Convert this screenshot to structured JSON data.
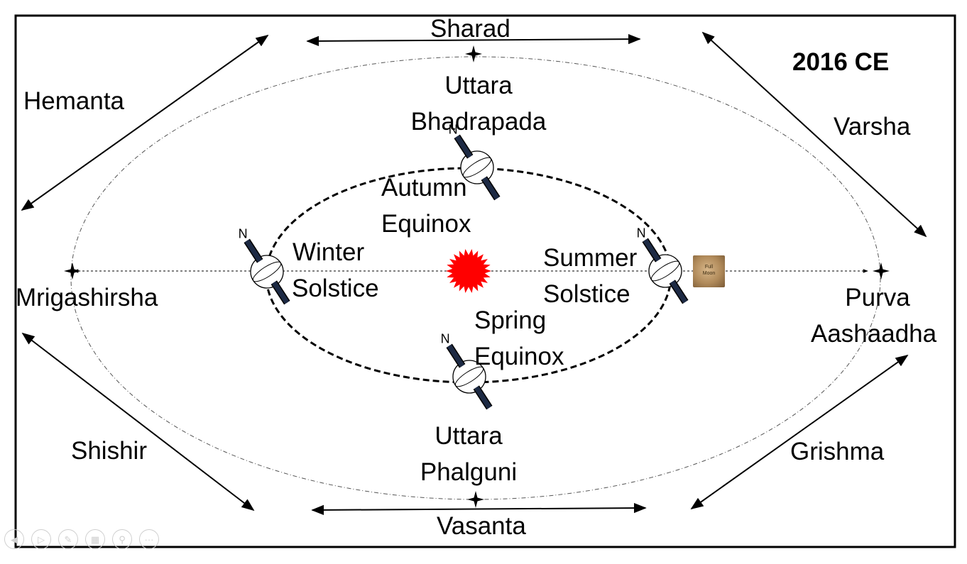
{
  "title": "2016 CE",
  "seasons": {
    "sharad": "Sharad",
    "hemanta": "Hemanta",
    "varsha": "Varsha",
    "shishir": "Shishir",
    "grishma": "Grishma",
    "vasanta": "Vasanta"
  },
  "nakshatras": {
    "top_line1": "Uttara",
    "top_line2": "Bhadrapada",
    "bottom_line1": "Uttara",
    "bottom_line2": "Phalguni",
    "left": "Mrigashirsha",
    "right_line1": "Purva",
    "right_line2": "Aashaadha"
  },
  "events": {
    "autumn_line1": "Autumn",
    "autumn_line2": "Equinox",
    "winter_line1": "Winter",
    "winter_line2": "Solstice",
    "summer_line1": "Summer",
    "summer_line2": "Solstice",
    "spring_line1": "Spring",
    "spring_line2": "Equinox"
  },
  "earth_pole_label": "N",
  "moon_label": "Full Moon",
  "colors": {
    "sun": "#ff0000",
    "line": "#000000",
    "moon": "#b08a5a"
  },
  "controls": [
    "back-icon",
    "play-icon",
    "pen-icon",
    "slides-icon",
    "zoom-icon",
    "more-icon"
  ]
}
